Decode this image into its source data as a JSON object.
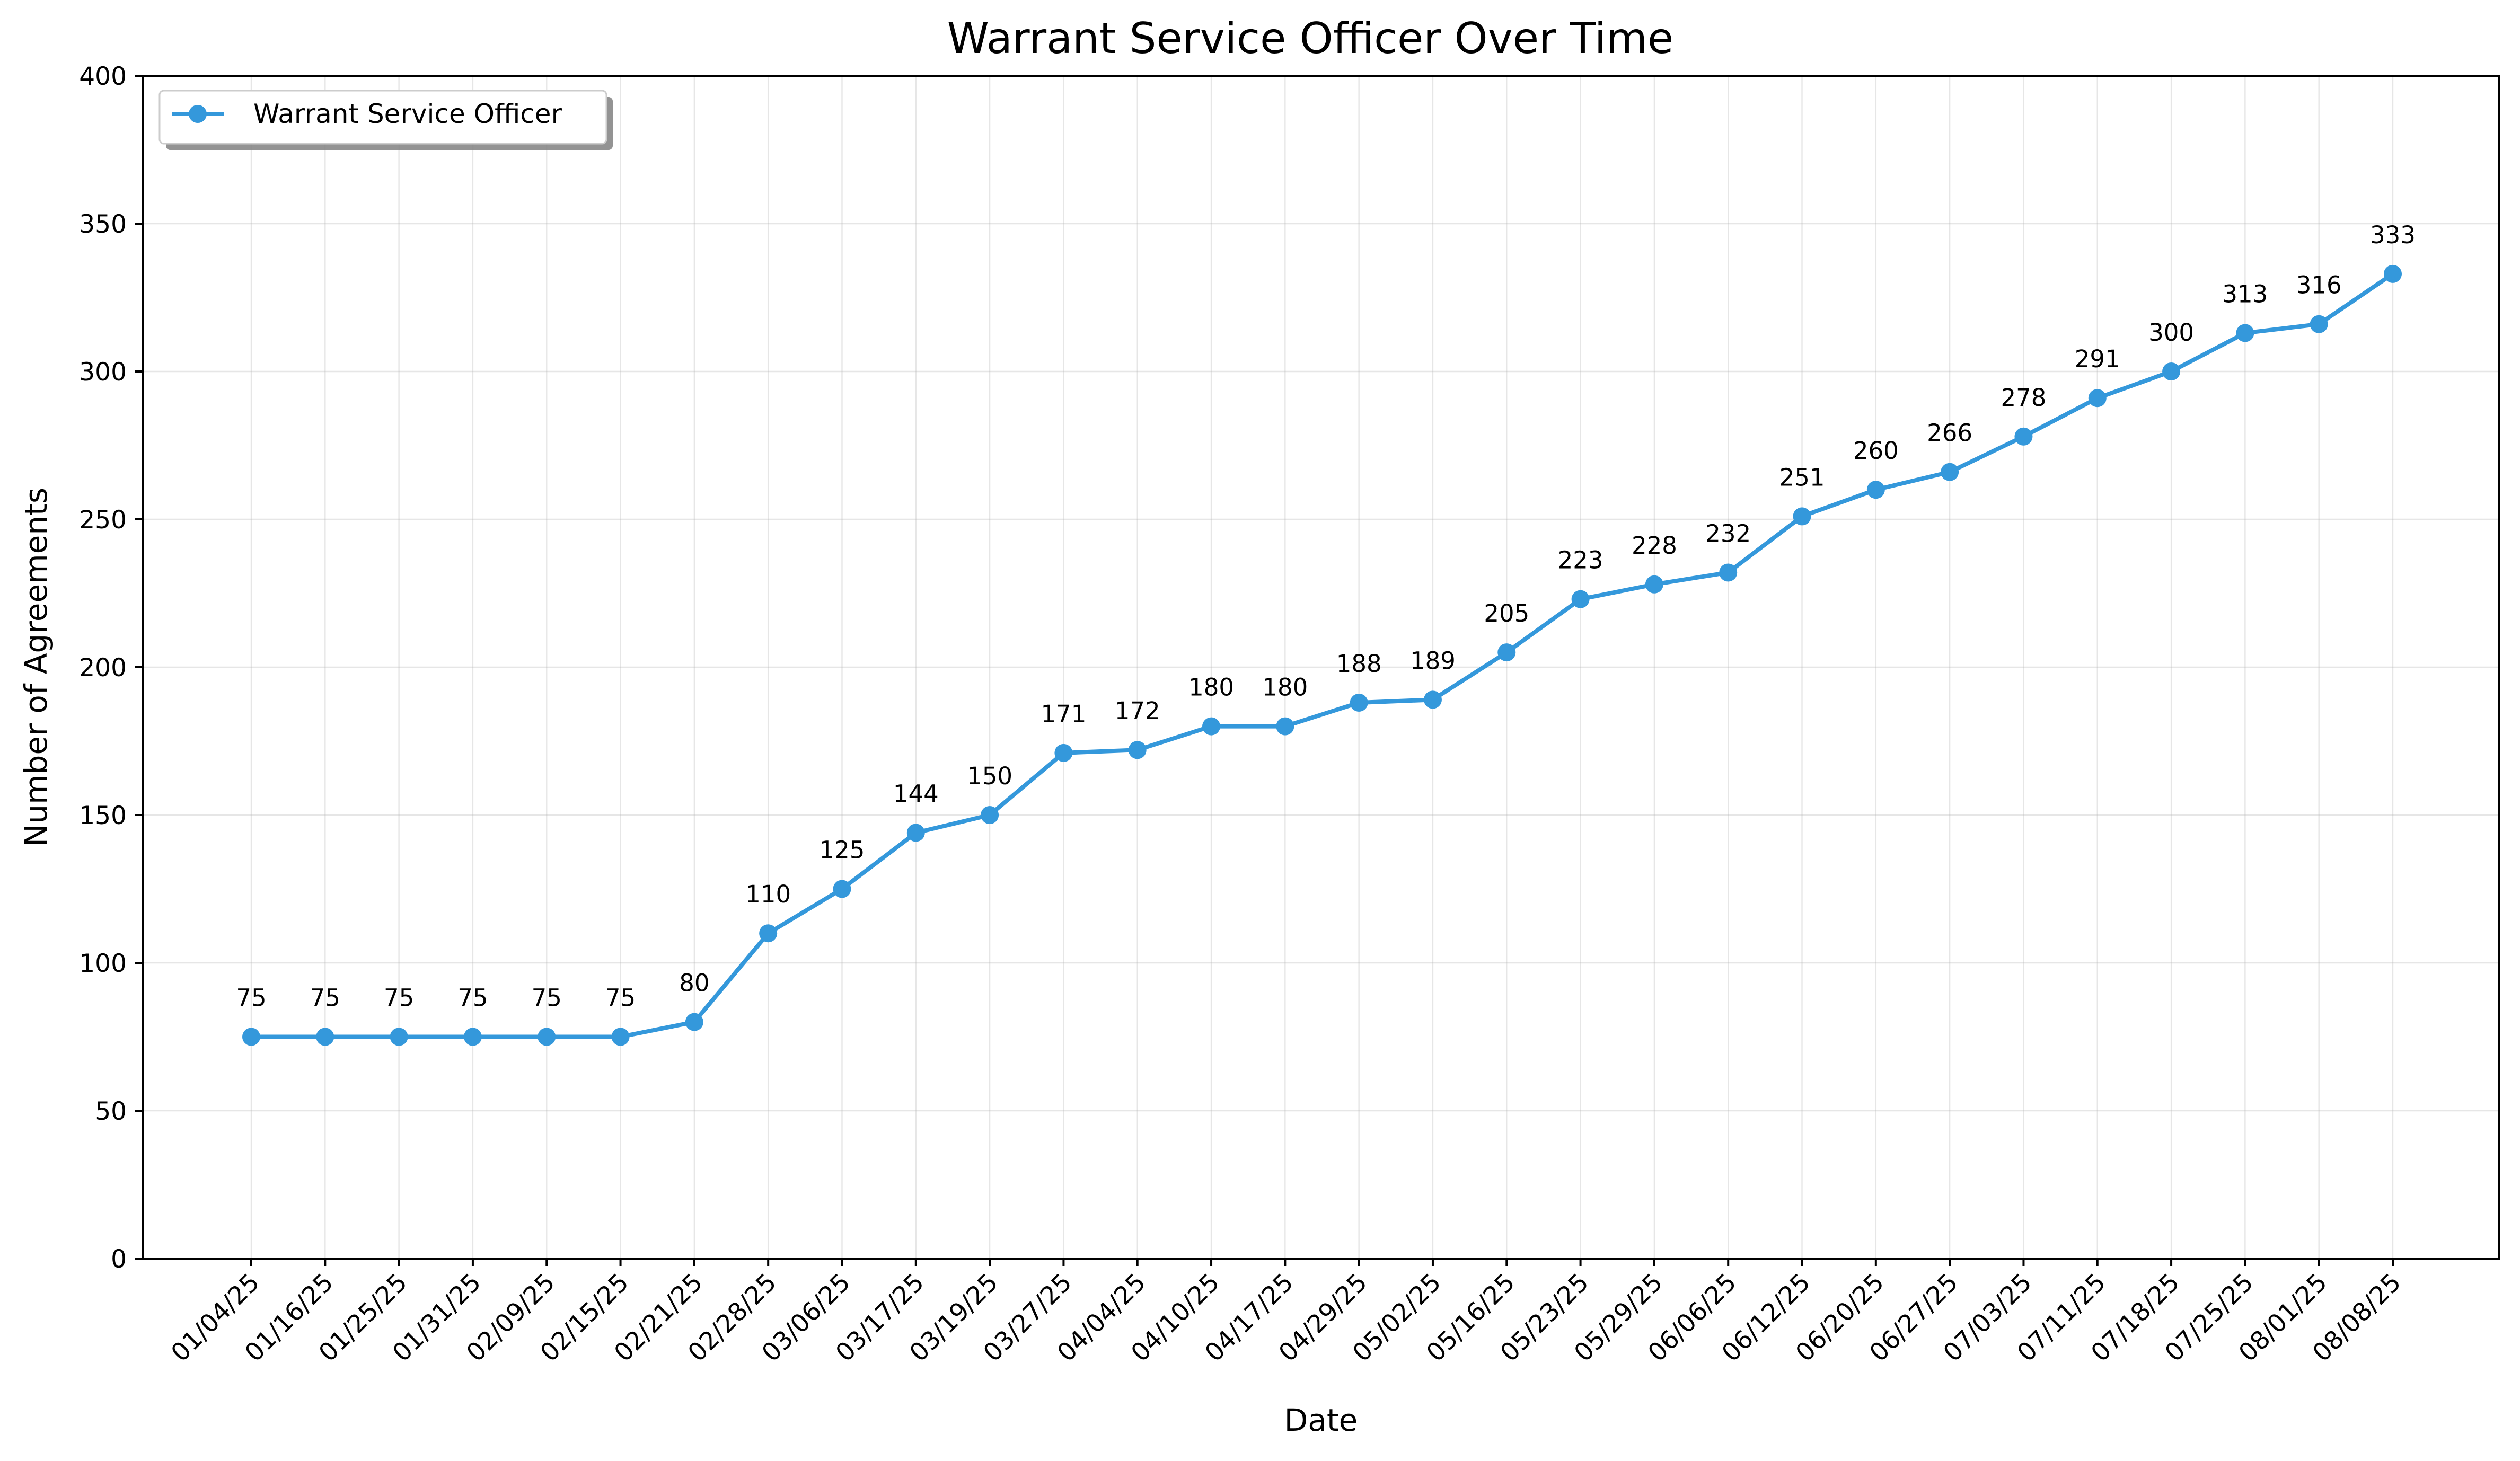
{
  "chart_data": {
    "type": "line",
    "title": "Warrant Service Officer Over Time",
    "xlabel": "Date",
    "ylabel": "Number of Agreements",
    "ylim": [
      0,
      400
    ],
    "yticks": [
      0,
      50,
      100,
      150,
      200,
      250,
      300,
      350,
      400
    ],
    "grid": true,
    "legend_position": "top-left",
    "categories": [
      "01/04/25",
      "01/16/25",
      "01/25/25",
      "01/31/25",
      "02/09/25",
      "02/15/25",
      "02/21/25",
      "02/28/25",
      "03/06/25",
      "03/17/25",
      "03/19/25",
      "03/27/25",
      "04/04/25",
      "04/10/25",
      "04/17/25",
      "04/29/25",
      "05/02/25",
      "05/16/25",
      "05/23/25",
      "05/29/25",
      "06/06/25",
      "06/12/25",
      "06/20/25",
      "06/27/25",
      "07/03/25",
      "07/11/25",
      "07/18/25",
      "07/25/25",
      "08/01/25",
      "08/08/25"
    ],
    "series": [
      {
        "name": "Warrant Service Officer",
        "color": "#3498db",
        "marker": "circle",
        "values": [
          75,
          75,
          75,
          75,
          75,
          75,
          80,
          110,
          125,
          144,
          150,
          171,
          172,
          180,
          180,
          188,
          189,
          205,
          223,
          228,
          232,
          251,
          260,
          266,
          278,
          291,
          300,
          313,
          316,
          333
        ]
      }
    ]
  }
}
